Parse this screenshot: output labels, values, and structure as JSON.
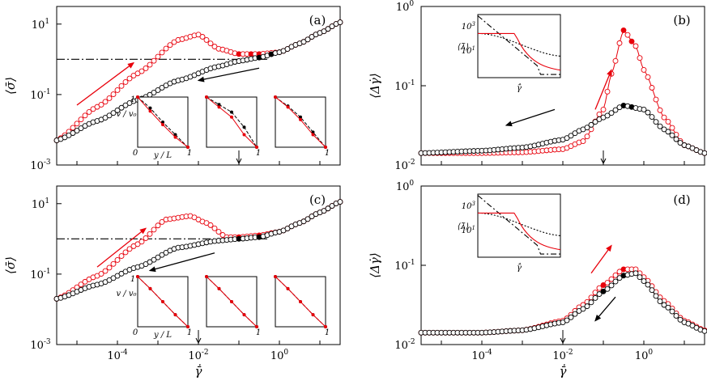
{
  "colors": {
    "up": "#e8000b",
    "down": "#000000"
  },
  "chart_data": [
    {
      "id": "a",
      "type": "scatter",
      "panel_label": "(a)",
      "xlabel": "γ̄̇",
      "ylabel": "⟨σ̄⟩",
      "x_log10_range": [
        -5.5,
        1.5
      ],
      "y_log10_range": [
        -3,
        1.5
      ],
      "x_ticks": [],
      "y_ticks": [
        {
          "exp": 1,
          "label": "10",
          "sup": "1"
        },
        {
          "exp": -1,
          "label": "10",
          "sup": "-1"
        },
        {
          "exp": -3,
          "label": "10",
          "sup": "-3"
        }
      ],
      "arrow_mark_x": 0.1,
      "yield_line_log10": 0,
      "series": [
        {
          "key": "up",
          "log10_x": [
            -5.5,
            -4.5,
            -3.5,
            -2.5,
            -2,
            -1.5,
            -1,
            -0.5,
            0,
            0.5,
            1,
            1.5
          ],
          "log10_y": [
            -2.3,
            -1.35,
            -0.4,
            0.55,
            0.7,
            0.3,
            0.15,
            0.15,
            0.2,
            0.45,
            0.75,
            1.05
          ]
        },
        {
          "key": "down",
          "log10_x": [
            -5.5,
            -4.5,
            -3.5,
            -2.5,
            -1.5,
            -1,
            -0.5,
            0,
            0.5,
            1,
            1.5
          ],
          "log10_y": [
            -2.3,
            -1.75,
            -1.15,
            -0.6,
            -0.2,
            -0.05,
            0.05,
            0.2,
            0.45,
            0.75,
            1.05
          ]
        }
      ],
      "filled_points": {
        "up": [
          -0.5,
          -1,
          -0.7
        ],
        "down": [
          -0.5,
          -0.2
        ]
      },
      "insets": {
        "ylabel": "v / v₀",
        "xlabel": "y / L",
        "x_ticks": [
          "0",
          "1"
        ],
        "y_ticks": [
          "0",
          "1"
        ],
        "profiles": [
          {
            "red": [
              1,
              0.72,
              0.45,
              0.2,
              0
            ],
            "black": [
              1,
              0.78,
              0.5,
              0.25,
              0
            ]
          },
          {
            "red": [
              1,
              0.8,
              0.6,
              0.25,
              0
            ],
            "black": [
              1,
              0.85,
              0.7,
              0.4,
              0
            ]
          },
          {
            "red": [
              1,
              0.8,
              0.55,
              0.25,
              0
            ],
            "black": [
              1,
              0.82,
              0.6,
              0.3,
              0
            ]
          }
        ]
      }
    },
    {
      "id": "b",
      "type": "scatter",
      "panel_label": "(b)",
      "xlabel": "γ̄̇",
      "ylabel": "⟨Δγ̇⟩",
      "x_log10_range": [
        -5.5,
        1.5
      ],
      "y_log10_range": [
        -2,
        0
      ],
      "x_ticks": [],
      "y_ticks": [
        {
          "exp": 0,
          "label": "10",
          "sup": "0"
        },
        {
          "exp": -1,
          "label": "10",
          "sup": "-1"
        },
        {
          "exp": -2,
          "label": "10",
          "sup": "-2"
        }
      ],
      "arrow_mark_x": 0.1,
      "series": [
        {
          "key": "up",
          "log10_x": [
            -5.5,
            -4,
            -3,
            -2,
            -1.5,
            -1,
            -0.8,
            -0.5,
            -0.2,
            0,
            0.5,
            1,
            1.5
          ],
          "log10_y": [
            -1.85,
            -1.85,
            -1.84,
            -1.8,
            -1.7,
            -1.3,
            -0.85,
            -0.3,
            -0.5,
            -0.8,
            -1.4,
            -1.75,
            -1.85
          ]
        },
        {
          "key": "down",
          "log10_x": [
            -5.5,
            -4,
            -3,
            -2,
            -1.5,
            -1,
            -0.5,
            0,
            0.5,
            1,
            1.5
          ],
          "log10_y": [
            -1.85,
            -1.82,
            -1.78,
            -1.68,
            -1.55,
            -1.4,
            -1.25,
            -1.3,
            -1.55,
            -1.75,
            -1.85
          ]
        }
      ],
      "filled_points": {
        "up": [
          -0.5,
          -0.3
        ],
        "down": [
          -0.5,
          -0.3
        ]
      },
      "inset": {
        "ylabel": "⟨λ̄⟩",
        "xlabel": "γ̄̇",
        "y_ticks": [
          {
            "label": "10",
            "sup": "3"
          },
          {
            "label": "10",
            "sup": "1"
          }
        ]
      }
    },
    {
      "id": "c",
      "type": "scatter",
      "panel_label": "(c)",
      "xlabel": "γ̄̇",
      "ylabel": "⟨σ̄⟩",
      "x_log10_range": [
        -5.5,
        1.5
      ],
      "y_log10_range": [
        -3,
        1.5
      ],
      "x_ticks": [
        {
          "exp": -4,
          "label": "10",
          "sup": "-4"
        },
        {
          "exp": -2,
          "label": "10",
          "sup": "-2"
        },
        {
          "exp": 0,
          "label": "10",
          "sup": "0"
        }
      ],
      "y_ticks": [
        {
          "exp": 1,
          "label": "10",
          "sup": "1"
        },
        {
          "exp": -1,
          "label": "10",
          "sup": "-1"
        },
        {
          "exp": -3,
          "label": "10",
          "sup": "-3"
        }
      ],
      "arrow_mark_x": 0.01,
      "yield_line_log10": 0,
      "series": [
        {
          "key": "up",
          "log10_x": [
            -5.5,
            -4.5,
            -3.5,
            -2.8,
            -2.2,
            -1.8,
            -1.3,
            -1,
            -0.5,
            0,
            0.5,
            1,
            1.5
          ],
          "log10_y": [
            -1.7,
            -1.05,
            -0.15,
            0.55,
            0.65,
            0.45,
            0.05,
            0.05,
            0.1,
            0.2,
            0.45,
            0.75,
            1.05
          ]
        },
        {
          "key": "down",
          "log10_x": [
            -5.5,
            -4.5,
            -3.5,
            -2.5,
            -1.5,
            -1,
            -0.5,
            0,
            0.5,
            1,
            1.5
          ],
          "log10_y": [
            -1.7,
            -1.3,
            -0.8,
            -0.25,
            -0.05,
            0,
            0.05,
            0.2,
            0.45,
            0.75,
            1.05
          ]
        }
      ],
      "filled_points": {
        "up": [
          -1,
          -0.5,
          -0.2
        ],
        "down": [
          -1,
          -0.5
        ]
      },
      "insets": {
        "ylabel": "v / v₀",
        "xlabel": "y / L",
        "x_ticks": [
          "0",
          "1"
        ],
        "y_ticks": [
          "0",
          "1"
        ],
        "profiles": [
          {
            "red": [
              1,
              0.76,
              0.5,
              0.24,
              0
            ],
            "black": [
              1,
              0.76,
              0.5,
              0.24,
              0
            ]
          },
          {
            "red": [
              1,
              0.76,
              0.5,
              0.24,
              0
            ],
            "black": [
              1,
              0.76,
              0.5,
              0.24,
              0
            ]
          },
          {
            "red": [
              1,
              0.76,
              0.5,
              0.24,
              0
            ],
            "black": [
              1,
              0.76,
              0.5,
              0.24,
              0
            ]
          }
        ]
      }
    },
    {
      "id": "d",
      "type": "scatter",
      "panel_label": "(d)",
      "xlabel": "γ̄̇",
      "ylabel": "⟨Δγ̇⟩",
      "x_log10_range": [
        -5.5,
        1.5
      ],
      "y_log10_range": [
        -2,
        0
      ],
      "x_ticks": [
        {
          "exp": -4,
          "label": "10",
          "sup": "-4"
        },
        {
          "exp": -2,
          "label": "10",
          "sup": "-2"
        },
        {
          "exp": 0,
          "label": "10",
          "sup": "0"
        }
      ],
      "y_ticks": [
        {
          "exp": 0,
          "label": "10",
          "sup": "0"
        },
        {
          "exp": -1,
          "label": "10",
          "sup": "-1"
        },
        {
          "exp": -2,
          "label": "10",
          "sup": "-2"
        }
      ],
      "arrow_mark_x": 0.01,
      "series": [
        {
          "key": "up",
          "log10_x": [
            -5.5,
            -4,
            -3,
            -2,
            -1.5,
            -1,
            -0.5,
            -0.2,
            0,
            0.5,
            1,
            1.5
          ],
          "log10_y": [
            -1.85,
            -1.85,
            -1.82,
            -1.7,
            -1.5,
            -1.25,
            -1.05,
            -1.05,
            -1.15,
            -1.45,
            -1.7,
            -1.82
          ]
        },
        {
          "key": "down",
          "log10_x": [
            -5.5,
            -4,
            -3,
            -2,
            -1.5,
            -1,
            -0.5,
            -0.2,
            0,
            0.5,
            1,
            1.5
          ],
          "log10_y": [
            -1.85,
            -1.85,
            -1.82,
            -1.72,
            -1.55,
            -1.33,
            -1.13,
            -1.1,
            -1.2,
            -1.5,
            -1.72,
            -1.83
          ]
        }
      ],
      "filled_points": {
        "up": [
          -1,
          -0.5
        ],
        "down": [
          -1,
          -0.5
        ]
      },
      "inset": {
        "ylabel": "⟨λ̄⟩",
        "xlabel": "γ̄̇",
        "y_ticks": [
          {
            "label": "10",
            "sup": "3"
          },
          {
            "label": "10",
            "sup": "1"
          }
        ]
      }
    }
  ]
}
